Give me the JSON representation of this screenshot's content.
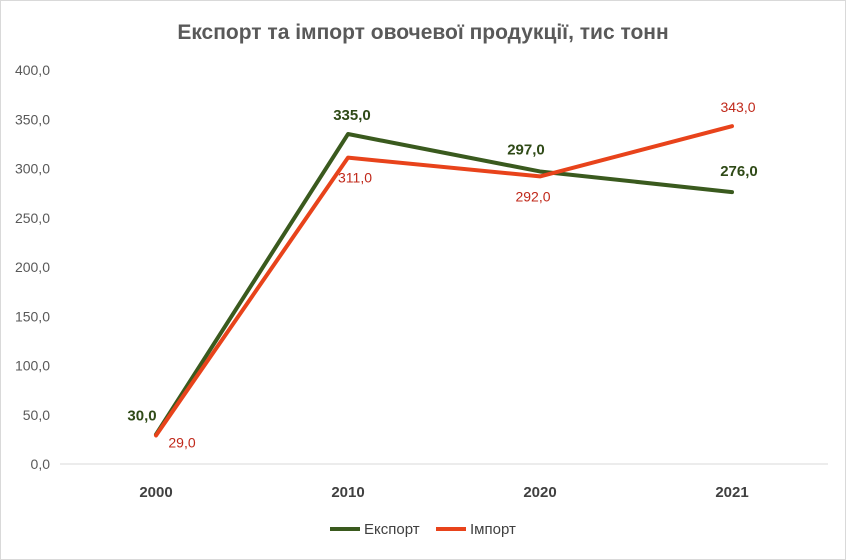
{
  "chart_data": {
    "type": "line",
    "title": "Експорт та імпорт овочевої продукції, тис тонн",
    "categories": [
      "2000",
      "2010",
      "2020",
      "2021"
    ],
    "ylim": [
      0,
      400
    ],
    "yticks": [
      0,
      50,
      100,
      150,
      200,
      250,
      300,
      350,
      400
    ],
    "ytick_labels": [
      "0,0",
      "50,0",
      "100,0",
      "150,0",
      "200,0",
      "250,0",
      "300,0",
      "350,0",
      "400,0"
    ],
    "grid": false,
    "legend": "bottom",
    "series": [
      {
        "name": "Експорт",
        "color": "#3a5a1e",
        "values": [
          30,
          335,
          297,
          276
        ],
        "labels": [
          "30,0",
          "335,0",
          "297,0",
          "276,0"
        ]
      },
      {
        "name": "Імпорт",
        "color": "#e8431b",
        "values": [
          29,
          311,
          292,
          343
        ],
        "labels": [
          "29,0",
          "311,0",
          "292,0",
          "343,0"
        ]
      }
    ]
  }
}
